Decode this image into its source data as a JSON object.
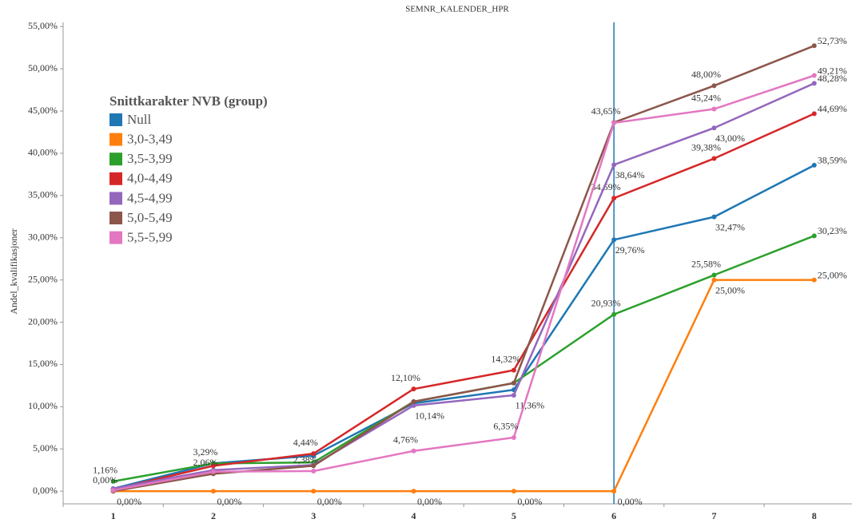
{
  "chart_data": {
    "type": "line",
    "title": "SEMNR_KALENDER_HPR",
    "y_label": "Andel_kvalifikasjoner",
    "legend_title": "Snittkarakter NVB (group)",
    "legend": "upper left",
    "reference_category": "6",
    "reference_color": "#1f77b4",
    "categories": [
      "1",
      "2",
      "3",
      "4",
      "5",
      "6",
      "7",
      "8"
    ],
    "ylim": [
      -1.5,
      55.5
    ],
    "yticks": [
      {
        "value": 0,
        "label": "0,00%"
      },
      {
        "value": 5,
        "label": "5,00%"
      },
      {
        "value": 10,
        "label": "10,00%"
      },
      {
        "value": 15,
        "label": "15,00%"
      },
      {
        "value": 20,
        "label": "20,00%"
      },
      {
        "value": 25,
        "label": "25,00%"
      },
      {
        "value": 30,
        "label": "30,00%"
      },
      {
        "value": 35,
        "label": "35,00%"
      },
      {
        "value": 40,
        "label": "40,00%"
      },
      {
        "value": 45,
        "label": "45,00%"
      },
      {
        "value": 50,
        "label": "50,00%"
      },
      {
        "value": 55,
        "label": "55,00%"
      }
    ],
    "series": [
      {
        "name": "Null",
        "color": "#1f77b4",
        "values": [
          0.3,
          3.3,
          4.2,
          10.4,
          12.0,
          29.76,
          32.47,
          38.59
        ],
        "value_labels": [
          null,
          null,
          null,
          null,
          null,
          "29,76%",
          "32,47%",
          "38,59%"
        ]
      },
      {
        "name": "3,0-3,49",
        "color": "#ff7f0e",
        "values": [
          0,
          0,
          0,
          0,
          0,
          0,
          25.0,
          25.0
        ],
        "value_labels": [
          "0,00%",
          "0,00%",
          "0,00%",
          "0,00%",
          "0,00%",
          "0,00%",
          "25,00%",
          "25,00%"
        ]
      },
      {
        "name": "3,5-3,99",
        "color": "#2ca02c",
        "values": [
          1.16,
          3.29,
          3.4,
          10.6,
          12.8,
          20.93,
          25.58,
          30.23
        ],
        "value_labels": [
          "1,16%",
          "3,29%",
          null,
          null,
          null,
          "20,93%",
          "25,58%",
          "30,23%"
        ]
      },
      {
        "name": "4,0-4,49",
        "color": "#d62728",
        "values": [
          0.2,
          3.0,
          4.44,
          12.1,
          14.32,
          34.69,
          39.38,
          44.69
        ],
        "value_labels": [
          null,
          null,
          "4,44%",
          "12,10%",
          "14,32%",
          "34,69%",
          "39,38%",
          "44,69%"
        ]
      },
      {
        "name": "4,5-4,99",
        "color": "#9467bd",
        "values": [
          0.3,
          2.5,
          3.1,
          10.14,
          11.36,
          38.64,
          43.0,
          48.28
        ],
        "value_labels": [
          null,
          null,
          null,
          "10,14%",
          "11,36%",
          "38,64%",
          "43,00%",
          "48,28%"
        ]
      },
      {
        "name": "5,0-5,49",
        "color": "#8c564b",
        "values": [
          0,
          2.06,
          3.0,
          10.6,
          12.8,
          43.65,
          48.0,
          52.73
        ],
        "value_labels": [
          "0,00%",
          "2,06%",
          null,
          null,
          null,
          "43,65%",
          "48,00%",
          "52,73%"
        ]
      },
      {
        "name": "5,5-5,99",
        "color": "#e377c2",
        "values": [
          0.1,
          2.3,
          2.38,
          4.76,
          6.35,
          43.6,
          45.24,
          49.21
        ],
        "value_labels": [
          null,
          null,
          "2,38%",
          "4,76%",
          "6,35%",
          null,
          "45,24%",
          "49,21%"
        ]
      }
    ]
  }
}
